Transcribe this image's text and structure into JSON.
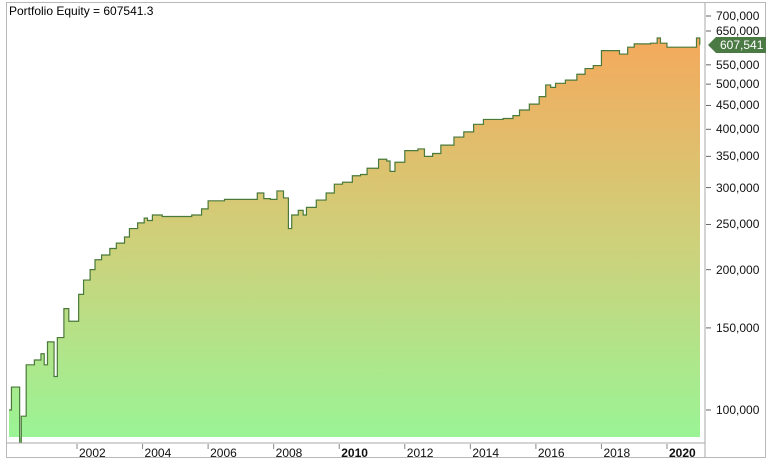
{
  "chart_data": {
    "type": "area",
    "title": "Portfolio Equity = 607541.3",
    "series": [
      {
        "name": "Portfolio Equity",
        "style": "step",
        "points": [
          [
            1999.9,
            100000
          ],
          [
            2000.0,
            112000
          ],
          [
            2000.25,
            85000
          ],
          [
            2000.3,
            97000
          ],
          [
            2000.45,
            125000
          ],
          [
            2000.7,
            128000
          ],
          [
            2000.9,
            132000
          ],
          [
            2001.0,
            125000
          ],
          [
            2001.1,
            140000
          ],
          [
            2001.3,
            118000
          ],
          [
            2001.4,
            143000
          ],
          [
            2001.6,
            165000
          ],
          [
            2001.75,
            155000
          ],
          [
            2001.95,
            155000
          ],
          [
            2002.05,
            177000
          ],
          [
            2002.2,
            190000
          ],
          [
            2002.4,
            200000
          ],
          [
            2002.55,
            210000
          ],
          [
            2002.75,
            215000
          ],
          [
            2003.0,
            222000
          ],
          [
            2003.2,
            228000
          ],
          [
            2003.45,
            235000
          ],
          [
            2003.6,
            245000
          ],
          [
            2003.85,
            252000
          ],
          [
            2004.05,
            258000
          ],
          [
            2004.15,
            255000
          ],
          [
            2004.3,
            262000
          ],
          [
            2004.6,
            260000
          ],
          [
            2005.0,
            260000
          ],
          [
            2005.5,
            262000
          ],
          [
            2005.8,
            270000
          ],
          [
            2006.0,
            281000
          ],
          [
            2006.5,
            283000
          ],
          [
            2007.0,
            283000
          ],
          [
            2007.5,
            292000
          ],
          [
            2007.7,
            284000
          ],
          [
            2007.9,
            283000
          ],
          [
            2008.1,
            295000
          ],
          [
            2008.3,
            285000
          ],
          [
            2008.45,
            245000
          ],
          [
            2008.55,
            262000
          ],
          [
            2008.75,
            268000
          ],
          [
            2008.9,
            262000
          ],
          [
            2009.0,
            272000
          ],
          [
            2009.3,
            282000
          ],
          [
            2009.6,
            292000
          ],
          [
            2009.85,
            305000
          ],
          [
            2010.1,
            308000
          ],
          [
            2010.4,
            318000
          ],
          [
            2010.65,
            320000
          ],
          [
            2010.85,
            330000
          ],
          [
            2011.2,
            345000
          ],
          [
            2011.45,
            342000
          ],
          [
            2011.55,
            325000
          ],
          [
            2011.7,
            340000
          ],
          [
            2012.0,
            360000
          ],
          [
            2012.4,
            363000
          ],
          [
            2012.6,
            350000
          ],
          [
            2012.85,
            355000
          ],
          [
            2013.1,
            370000
          ],
          [
            2013.5,
            385000
          ],
          [
            2013.8,
            395000
          ],
          [
            2014.1,
            410000
          ],
          [
            2014.4,
            420000
          ],
          [
            2015.0,
            422000
          ],
          [
            2015.3,
            428000
          ],
          [
            2015.5,
            440000
          ],
          [
            2015.8,
            453000
          ],
          [
            2016.1,
            470000
          ],
          [
            2016.3,
            498000
          ],
          [
            2016.45,
            492000
          ],
          [
            2016.6,
            502000
          ],
          [
            2016.9,
            510000
          ],
          [
            2017.25,
            525000
          ],
          [
            2017.5,
            540000
          ],
          [
            2017.75,
            548000
          ],
          [
            2018.0,
            590000
          ],
          [
            2018.3,
            590000
          ],
          [
            2018.55,
            580000
          ],
          [
            2018.8,
            600000
          ],
          [
            2019.0,
            610000
          ],
          [
            2019.5,
            612000
          ],
          [
            2019.7,
            628000
          ],
          [
            2019.8,
            612000
          ],
          [
            2020.0,
            600000
          ],
          [
            2020.5,
            600000
          ],
          [
            2020.9,
            628000
          ],
          [
            2021.0,
            607541.3
          ]
        ]
      }
    ],
    "xlabel": "",
    "ylabel": "",
    "x_ticks": [
      "2002",
      "2004",
      "2006",
      "2008",
      "2010",
      "2012",
      "2014",
      "2016",
      "2018",
      "2020"
    ],
    "x_ticks_bold": [
      "2010",
      "2020"
    ],
    "y_ticks": [
      "100,000",
      "150,000",
      "200,000",
      "250,000",
      "300,000",
      "350,000",
      "400,000",
      "450,000",
      "500,000",
      "550,000",
      "650,000",
      "700,000"
    ],
    "y_scale": "log",
    "xlim": [
      1999.8,
      2021.0
    ],
    "ylim": [
      95000,
      720000
    ],
    "last_value_label": "607,541",
    "grid": false,
    "legend": "none",
    "colors": {
      "line": "#4a7a3a",
      "fill_top": "#f4a95c",
      "fill_bottom": "#98f596",
      "last_tag_bg": "#4c7a45"
    }
  }
}
